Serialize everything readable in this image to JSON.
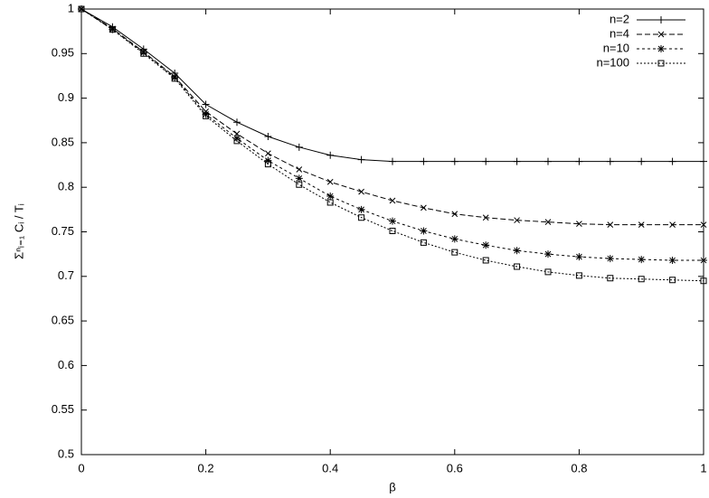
{
  "chart_data": {
    "type": "line",
    "xlabel": "β",
    "ylabel": "Σⁿᵢ₌₁ Cᵢ / Tᵢ",
    "x": [
      0,
      0.05,
      0.1,
      0.15,
      0.2,
      0.25,
      0.3,
      0.35,
      0.4,
      0.45,
      0.5,
      0.55,
      0.6,
      0.65,
      0.7,
      0.75,
      0.8,
      0.85,
      0.9,
      0.95,
      1
    ],
    "series": [
      {
        "name": "n=2",
        "color": "#000000",
        "marker": "plus",
        "dash": "none",
        "values": [
          1,
          0.98,
          0.955,
          0.928,
          0.893,
          0.873,
          0.857,
          0.845,
          0.836,
          0.831,
          0.829,
          0.829,
          0.829,
          0.829,
          0.829,
          0.829,
          0.829,
          0.829,
          0.829,
          0.829,
          0.829
        ]
      },
      {
        "name": "n=4",
        "color": "#000000",
        "marker": "cross",
        "dash": "6 3",
        "values": [
          1,
          0.978,
          0.952,
          0.924,
          0.885,
          0.86,
          0.838,
          0.82,
          0.806,
          0.795,
          0.785,
          0.777,
          0.77,
          0.766,
          0.763,
          0.761,
          0.759,
          0.758,
          0.758,
          0.758,
          0.758
        ]
      },
      {
        "name": "n=10",
        "color": "#000000",
        "marker": "star",
        "dash": "3 3",
        "values": [
          1,
          0.977,
          0.951,
          0.923,
          0.882,
          0.855,
          0.83,
          0.81,
          0.79,
          0.775,
          0.762,
          0.751,
          0.742,
          0.735,
          0.729,
          0.725,
          0.722,
          0.72,
          0.719,
          0.718,
          0.718
        ]
      },
      {
        "name": "n=100",
        "color": "#000000",
        "marker": "square",
        "dash": "2 2",
        "values": [
          1,
          0.977,
          0.95,
          0.922,
          0.88,
          0.852,
          0.826,
          0.803,
          0.783,
          0.766,
          0.751,
          0.738,
          0.727,
          0.718,
          0.711,
          0.705,
          0.701,
          0.698,
          0.697,
          0.696,
          0.695
        ]
      }
    ],
    "xlim": [
      0,
      1
    ],
    "ylim": [
      0.5,
      1
    ],
    "xticks": [
      0,
      0.2,
      0.4,
      0.6,
      0.8,
      1
    ],
    "yticks": [
      0.5,
      0.55,
      0.6,
      0.65,
      0.7,
      0.75,
      0.8,
      0.85,
      0.9,
      0.95,
      1
    ],
    "grid": false,
    "legend": "top-right"
  }
}
